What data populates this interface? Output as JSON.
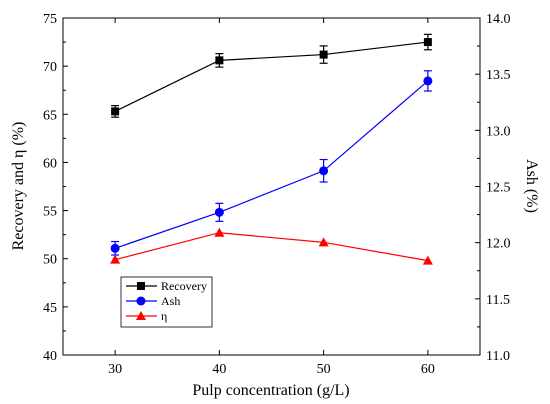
{
  "chart_data": {
    "type": "line",
    "categories": [
      30,
      40,
      50,
      60
    ],
    "xlabel": "Pulp concentration (g/L)",
    "ylabel_left": "Recovery and η (%)",
    "ylabel_right": "Ash (%)",
    "xlim": [
      25,
      65
    ],
    "ylim_left": [
      40,
      75
    ],
    "ylim_right": [
      11.0,
      14.0
    ],
    "xticks": [
      "30",
      "40",
      "50",
      "60"
    ],
    "yticks_left": [
      "40",
      "45",
      "50",
      "55",
      "60",
      "65",
      "70",
      "75"
    ],
    "yticks_right": [
      "11.0",
      "11.5",
      "12.0",
      "12.5",
      "13.0",
      "13.5",
      "14.0"
    ],
    "grid": false,
    "legend_position": "bottom-left",
    "series": [
      {
        "name": "Recovery",
        "axis": "left",
        "color": "#000000",
        "marker": "square",
        "values": [
          65.3,
          70.6,
          71.2,
          72.5
        ],
        "errors": [
          0.6,
          0.7,
          0.9,
          0.8
        ]
      },
      {
        "name": "Ash",
        "axis": "right",
        "color": "#0000ff",
        "marker": "circle",
        "values": [
          11.95,
          12.27,
          12.64,
          13.44
        ],
        "errors": [
          0.06,
          0.08,
          0.1,
          0.09
        ]
      },
      {
        "name": "η",
        "axis": "left",
        "color": "#ff0000",
        "marker": "triangle",
        "values": [
          49.9,
          52.7,
          51.7,
          49.8
        ],
        "errors": null
      }
    ]
  }
}
